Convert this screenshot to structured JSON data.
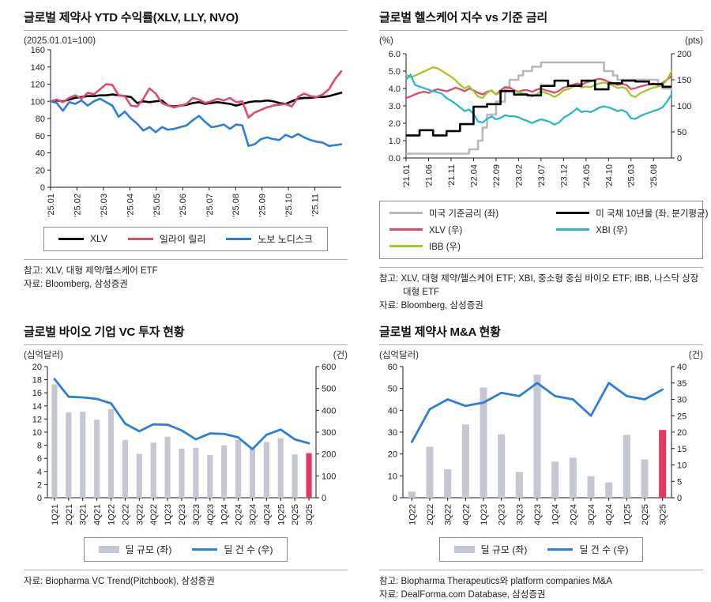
{
  "colors": {
    "xlv_black": "#000000",
    "lly_pink": "#de4a6e",
    "nvo_blue": "#2e7dd7",
    "fed_gray": "#b9b9b9",
    "xbi_cyan": "#29b6ce",
    "ibb_green": "#a2c829",
    "bar_gray": "#c5c8d2",
    "bar_red": "#e53762",
    "deal_line_blue": "#2e7dd7",
    "axis": "#1a1a1a",
    "tick_label": "#222222"
  },
  "chart_data": [
    {
      "type": "line",
      "title": "글로벌 제약사 YTD 수익률(XLV, LLY, NVO)",
      "unit_left": "(2025.01.01=100)",
      "unit_right": "",
      "notes": [
        "참고: XLV, 대형 제약/헬스케어 ETF",
        "자료: Bloomberg, 삼성증권"
      ],
      "axis_left": {
        "min": 0,
        "max": 160,
        "step": 20,
        "fmt": 0
      },
      "axis_right": null,
      "x_tick_labels": [
        "'25.01",
        "'25.02",
        "'25.03",
        "'25.04",
        "'25.05",
        "'25.06",
        "'25.07",
        "'25.08",
        "'25.09",
        "'25.10",
        "'25.11"
      ],
      "x_tick_at": [
        0,
        4.27,
        8.55,
        12.82,
        17.09,
        21.36,
        25.64,
        29.91,
        34.18,
        38.45,
        42.73
      ],
      "series": [
        {
          "name": "XLV",
          "color": "#000000",
          "axis": "left",
          "width": 2.6,
          "step": false,
          "values": [
            100,
            101,
            100,
            102,
            104,
            105,
            106,
            106,
            107,
            107,
            108,
            107,
            106,
            105,
            98,
            100,
            99,
            100,
            101,
            95,
            94,
            95,
            96,
            98,
            99,
            97,
            98,
            99,
            98,
            97,
            95,
            97,
            99,
            100,
            100,
            101,
            100,
            98,
            97,
            100,
            103,
            104,
            104,
            105,
            105,
            106,
            108,
            110
          ]
        },
        {
          "name": "일라이 릴리",
          "color": "#de4a6e",
          "axis": "left",
          "width": 2.6,
          "step": false,
          "values": [
            100,
            102,
            99,
            104,
            107,
            103,
            110,
            108,
            114,
            120,
            119,
            107,
            106,
            95,
            94,
            103,
            115,
            109,
            98,
            95,
            93,
            95,
            97,
            104,
            102,
            98,
            100,
            103,
            101,
            104,
            99,
            100,
            81,
            87,
            90,
            93,
            95,
            96,
            97,
            94,
            105,
            109,
            106,
            105,
            108,
            114,
            126,
            135
          ]
        },
        {
          "name": "노보 노디스크",
          "color": "#2e7dd7",
          "axis": "left",
          "width": 2.6,
          "step": false,
          "values": [
            100,
            98,
            89,
            99,
            97,
            101,
            95,
            100,
            103,
            99,
            95,
            82,
            88,
            80,
            74,
            66,
            70,
            64,
            70,
            67,
            68,
            70,
            72,
            78,
            83,
            76,
            70,
            71,
            73,
            68,
            73,
            72,
            48,
            50,
            56,
            58,
            56,
            55,
            61,
            58,
            62,
            58,
            55,
            53,
            52,
            48,
            49,
            50
          ]
        }
      ],
      "legend": [
        {
          "label": "XLV",
          "swatch": "line",
          "color": "#000000"
        },
        {
          "label": "일라이 릴리",
          "swatch": "line",
          "color": "#de4a6e"
        },
        {
          "label": "노보 노디스크",
          "swatch": "line",
          "color": "#2e7dd7"
        }
      ]
    },
    {
      "type": "line",
      "title": "글로벌 헬스케어 지수 vs 기준 금리",
      "unit_left": "(%)",
      "unit_right": "(pts)",
      "notes": [
        "참고: XLV, 대형 제약/헬스케어 ETF; XBI, 중소형 중심 바이오 ETF; IBB, 나스닥 상장 대형 ETF",
        "자료: Bloomberg, 삼성증권"
      ],
      "axis_left": {
        "min": 0,
        "max": 6,
        "step": 1,
        "fmt": 1
      },
      "axis_right": {
        "min": 0,
        "max": 200,
        "step": 50,
        "fmt": 0
      },
      "x_tick_labels": [
        "'21.01",
        "'21.06",
        "'21.11",
        "'22.04",
        "'22.09",
        "'23.02",
        "'23.07",
        "'23.12",
        "'24.05",
        "'24.10",
        "'25.03",
        "'25.08"
      ],
      "x_tick_at": [
        0,
        5,
        10,
        15,
        20,
        25,
        30,
        35,
        40,
        45,
        50,
        55
      ],
      "series": [
        {
          "name": "미국 기준금리 (좌)",
          "color": "#b9b9b9",
          "axis": "left",
          "width": 2.6,
          "step": true,
          "values": [
            0.25,
            0.25,
            0.25,
            0.25,
            0.25,
            0.25,
            0.25,
            0.25,
            0.25,
            0.25,
            0.25,
            0.25,
            0.25,
            0.25,
            0.5,
            0.5,
            1.0,
            1.75,
            2.5,
            2.5,
            3.25,
            3.25,
            4.0,
            4.5,
            4.5,
            4.75,
            5.0,
            5.0,
            5.25,
            5.25,
            5.5,
            5.5,
            5.5,
            5.5,
            5.5,
            5.5,
            5.5,
            5.5,
            5.5,
            5.5,
            5.5,
            5.5,
            5.5,
            5.5,
            5.0,
            5.0,
            4.75,
            4.5,
            4.5,
            4.5,
            4.5,
            4.5,
            4.5,
            4.5,
            4.5,
            4.5,
            4.25,
            4.0,
            4.0,
            3.9
          ]
        },
        {
          "name": "XLV (우)",
          "color": "#de4a6e",
          "axis": "right",
          "width": 2.3,
          "step": false,
          "values": [
            115,
            118,
            122,
            125,
            127,
            125,
            129,
            132,
            130,
            128,
            131,
            135,
            132,
            128,
            133,
            130,
            125,
            122,
            127,
            129,
            122,
            130,
            136,
            135,
            130,
            127,
            130,
            130,
            127,
            131,
            133,
            130,
            128,
            125,
            129,
            135,
            137,
            140,
            143,
            140,
            145,
            147,
            150,
            152,
            150,
            146,
            144,
            140,
            142,
            140,
            132,
            134,
            137,
            139,
            141,
            143,
            140,
            144,
            150,
            157
          ]
        },
        {
          "name": "IBB (우)",
          "color": "#a2c829",
          "axis": "right",
          "width": 2.3,
          "step": false,
          "values": [
            160,
            155,
            158,
            162,
            166,
            170,
            174,
            172,
            167,
            161,
            156,
            149,
            140,
            134,
            138,
            128,
            118,
            115,
            125,
            130,
            122,
            125,
            131,
            128,
            128,
            126,
            124,
            122,
            118,
            122,
            128,
            125,
            122,
            117,
            122,
            130,
            132,
            136,
            140,
            135,
            137,
            136,
            140,
            143,
            145,
            142,
            139,
            134,
            136,
            133,
            120,
            117,
            124,
            128,
            132,
            135,
            137,
            140,
            150,
            166
          ]
        },
        {
          "name": "XBI (우)",
          "color": "#29b6ce",
          "axis": "right",
          "width": 2.3,
          "step": false,
          "values": [
            150,
            160,
            140,
            137,
            134,
            131,
            128,
            126,
            123,
            115,
            110,
            104,
            97,
            90,
            93,
            85,
            70,
            68,
            75,
            80,
            74,
            77,
            82,
            80,
            80,
            78,
            74,
            71,
            67,
            71,
            74,
            72,
            69,
            64,
            68,
            77,
            82,
            88,
            95,
            88,
            90,
            88,
            92,
            97,
            99,
            97,
            94,
            90,
            92,
            88,
            76,
            75,
            80,
            84,
            87,
            90,
            93,
            97,
            108,
            122
          ]
        },
        {
          "name": "미 국채 10년물 (좌, 분기평균)",
          "color": "#000000",
          "axis": "left",
          "width": 2.6,
          "step": true,
          "values": [
            1.3,
            1.3,
            1.3,
            1.6,
            1.6,
            1.6,
            1.3,
            1.3,
            1.3,
            1.55,
            1.55,
            1.55,
            1.95,
            1.95,
            1.95,
            2.95,
            2.95,
            2.95,
            3.1,
            3.1,
            3.1,
            3.85,
            3.85,
            3.85,
            3.65,
            3.65,
            3.65,
            3.6,
            3.6,
            3.6,
            4.15,
            4.15,
            4.15,
            4.45,
            4.45,
            4.45,
            4.15,
            4.15,
            4.15,
            4.45,
            4.45,
            4.45,
            3.95,
            3.95,
            3.95,
            4.3,
            4.3,
            4.3,
            4.45,
            4.45,
            4.45,
            4.4,
            4.4,
            4.4,
            4.25,
            4.25,
            4.25,
            4.1,
            4.1,
            4.1
          ]
        }
      ],
      "legend": [
        {
          "label": "미국 기준금리 (좌)",
          "swatch": "line",
          "color": "#b9b9b9"
        },
        {
          "label": "미 국채 10년물 (좌, 분기평균)",
          "swatch": "line",
          "color": "#000000"
        },
        {
          "label": "XLV (우)",
          "swatch": "line",
          "color": "#de4a6e"
        },
        {
          "label": "XBI (우)",
          "swatch": "line",
          "color": "#29b6ce"
        },
        {
          "label": "IBB (우)",
          "swatch": "line",
          "color": "#a2c829"
        }
      ]
    },
    {
      "type": "combo",
      "title": "글로벌 바이오 기업 VC 투자 현황",
      "unit_left": "(십억달러)",
      "unit_right": "(건)",
      "notes": [
        "자료: Biopharma VC Trend(Pitchbook), 삼성증권"
      ],
      "axis_left": {
        "min": 0,
        "max": 20,
        "step": 2,
        "fmt": 0
      },
      "axis_right": {
        "min": 0,
        "max": 600,
        "step": 100,
        "fmt": 0
      },
      "categories": [
        "1Q21",
        "2Q21",
        "3Q21",
        "4Q21",
        "1Q22",
        "2Q22",
        "3Q22",
        "4Q22",
        "1Q23",
        "2Q23",
        "3Q23",
        "4Q23",
        "1Q24",
        "2Q24",
        "3Q24",
        "4Q24",
        "1Q25",
        "2Q25",
        "3Q25"
      ],
      "bar_values": [
        17.3,
        13.0,
        13.1,
        11.9,
        13.5,
        8.8,
        6.7,
        8.4,
        9.3,
        7.5,
        7.6,
        6.5,
        8.0,
        8.8,
        7.5,
        8.5,
        9.1,
        6.6,
        6.8
      ],
      "bar_color": "#c5c8d2",
      "bar_highlight_index": 18,
      "bar_highlight_color": "#e53762",
      "line_values": [
        543,
        462,
        459,
        452,
        432,
        339,
        304,
        336,
        334,
        308,
        267,
        294,
        292,
        276,
        222,
        288,
        312,
        267,
        249
      ],
      "line_color": "#2e7dd7",
      "line_width": 2.8,
      "legend": [
        {
          "label": "딜 규모 (좌)",
          "swatch": "bar",
          "color": "#c5c8d2"
        },
        {
          "label": "딜 건 수 (우)",
          "swatch": "line",
          "color": "#2e7dd7"
        }
      ]
    },
    {
      "type": "combo",
      "title": "글로벌 제약사 M&A 현황",
      "unit_left": "(십억달러)",
      "unit_right": "(건)",
      "notes": [
        "참고: Biopharma Therapeutics와 platform companies M&A",
        "자료: DealForma.com Database, 삼성증권"
      ],
      "axis_left": {
        "min": 0,
        "max": 60,
        "step": 10,
        "fmt": 0
      },
      "axis_right": {
        "min": 0,
        "max": 40,
        "step": 5,
        "fmt": 0
      },
      "categories": [
        "1Q22",
        "2Q22",
        "3Q22",
        "4Q22",
        "1Q23",
        "2Q23",
        "3Q23",
        "4Q23",
        "1Q24",
        "2Q24",
        "3Q24",
        "4Q24",
        "1Q25",
        "2Q25",
        "3Q25"
      ],
      "bar_values": [
        2.8,
        23.3,
        13.0,
        33.5,
        50.5,
        29.0,
        11.8,
        56.3,
        16.5,
        18.3,
        9.8,
        7.0,
        28.7,
        17.5,
        31.0
      ],
      "bar_color": "#c5c8d2",
      "bar_highlight_index": 14,
      "bar_highlight_color": "#e53762",
      "line_values": [
        17,
        27,
        30,
        28,
        29,
        32,
        31,
        35,
        31,
        30,
        25,
        35,
        31,
        30,
        33
      ],
      "line_color": "#2e7dd7",
      "line_width": 2.8,
      "legend": [
        {
          "label": "딜 규모 (좌)",
          "swatch": "bar",
          "color": "#c5c8d2"
        },
        {
          "label": "딜 건 수 (우)",
          "swatch": "line",
          "color": "#2e7dd7"
        }
      ]
    }
  ]
}
